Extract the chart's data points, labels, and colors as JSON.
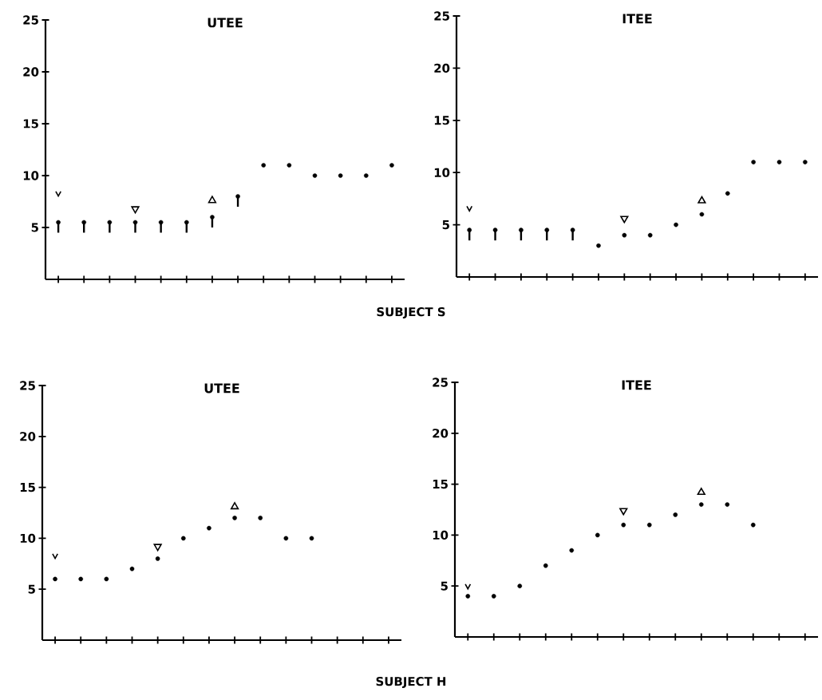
{
  "chart_data": [
    {
      "type": "scatter",
      "title": "UTEE",
      "categories": [
        null,
        null,
        null,
        null,
        null,
        null,
        null,
        null,
        null,
        null,
        null,
        null,
        null,
        null
      ],
      "ylim": [
        0,
        25
      ],
      "yticks": [
        5,
        10,
        15,
        20,
        25
      ],
      "tick_labels": "y",
      "marker": "circle",
      "series": [
        {
          "color": "#000000",
          "values": [
            5.5,
            5.5,
            5.5,
            5.5,
            5.5,
            5.5,
            6,
            8,
            11,
            11,
            10,
            10,
            10,
            11
          ],
          "errors": [
            [
              4.5,
              5.5
            ],
            [
              4.5,
              5.5
            ],
            [
              4.5,
              5.5
            ],
            [
              4.5,
              5.5
            ],
            [
              4.5,
              5.5
            ],
            [
              4.5,
              5.5
            ],
            [
              5,
              6
            ],
            [
              7,
              8
            ],
            null,
            null,
            null,
            null,
            null,
            null
          ]
        },
        {
          "color": "#000000",
          "marker": "cross",
          "values": [
            8.2,
            null,
            null,
            null,
            null,
            null,
            null,
            null,
            null,
            null,
            null,
            null,
            null,
            null
          ]
        },
        {
          "color": "#000000",
          "marker": "triangle",
          "values": [
            null,
            null,
            null,
            6.8,
            null,
            null,
            null,
            null,
            null,
            null,
            null,
            null,
            null,
            null
          ]
        },
        {
          "color": "#000000",
          "marker": "triangle",
          "values": [
            null,
            null,
            null,
            null,
            null,
            null,
            7.6,
            null,
            null,
            null,
            null,
            null,
            null,
            null
          ]
        }
      ],
      "annotations": [
        "SUBJECT S"
      ]
    },
    {
      "type": "scatter",
      "title": "ITEE",
      "categories": [
        null,
        null,
        null,
        null,
        null,
        null,
        null,
        null,
        null,
        null,
        null,
        null,
        null,
        null
      ],
      "ylim": [
        0,
        25
      ],
      "yticks": [
        5,
        10,
        15,
        20,
        25
      ],
      "tick_labels": "y",
      "marker": "circle",
      "series": [
        {
          "color": "#000000",
          "values": [
            4.5,
            4.5,
            4.5,
            4.5,
            4.5,
            3,
            4,
            4,
            5,
            6,
            8,
            11,
            11,
            11
          ],
          "errors": [
            [
              3.5,
              4.5
            ],
            [
              3.5,
              4.5
            ],
            [
              3.5,
              4.5
            ],
            [
              3.5,
              4.5
            ],
            [
              3.5,
              4.5
            ],
            null,
            null,
            null,
            null,
            null,
            null,
            null,
            null,
            null
          ]
        },
        {
          "color": "#000000",
          "marker": "cross",
          "values": [
            6.5,
            null,
            null,
            null,
            null,
            null,
            null,
            null,
            null,
            null,
            null,
            null,
            null,
            null
          ]
        },
        {
          "color": "#000000",
          "marker": "triangle",
          "values": [
            null,
            null,
            null,
            null,
            null,
            null,
            5.6,
            null,
            null,
            null,
            null,
            null,
            null,
            null
          ]
        },
        {
          "color": "#000000",
          "marker": "triangle",
          "values": [
            null,
            null,
            null,
            null,
            null,
            null,
            null,
            null,
            null,
            7.3,
            null,
            null,
            null,
            null
          ]
        }
      ]
    },
    {
      "type": "scatter",
      "title": "UTEE",
      "categories": [
        null,
        null,
        null,
        null,
        null,
        null,
        null,
        null,
        null,
        null,
        null,
        null,
        null,
        null
      ],
      "ylim": [
        0,
        25
      ],
      "yticks": [
        5,
        10,
        15,
        20,
        25
      ],
      "tick_labels": "y",
      "marker": "circle",
      "series": [
        {
          "color": "#000000",
          "values": [
            6,
            6,
            6,
            7,
            8,
            10,
            11,
            12,
            12,
            10,
            10,
            null,
            null,
            null
          ]
        },
        {
          "color": "#000000",
          "marker": "cross",
          "values": [
            8.2,
            null,
            null,
            null,
            null,
            null,
            null,
            null,
            null,
            null,
            null,
            null,
            null,
            null
          ]
        },
        {
          "color": "#000000",
          "marker": "triangle",
          "values": [
            null,
            null,
            null,
            null,
            9.2,
            null,
            null,
            null,
            null,
            null,
            null,
            null,
            null,
            null
          ]
        },
        {
          "color": "#000000",
          "marker": "triangle",
          "values": [
            null,
            null,
            null,
            null,
            null,
            null,
            null,
            13.1,
            null,
            null,
            null,
            null,
            null,
            null
          ]
        }
      ],
      "annotations": [
        "SUBJECT H"
      ]
    },
    {
      "type": "scatter",
      "title": "ITEE",
      "categories": [
        null,
        null,
        null,
        null,
        null,
        null,
        null,
        null,
        null,
        null,
        null,
        null,
        null,
        null
      ],
      "ylim": [
        0,
        25
      ],
      "yticks": [
        5,
        10,
        15,
        20,
        25
      ],
      "tick_labels": "y",
      "marker": "circle",
      "series": [
        {
          "color": "#000000",
          "values": [
            4,
            4,
            5,
            7,
            8.5,
            10,
            11,
            11,
            12,
            13,
            13,
            11,
            null,
            null
          ]
        },
        {
          "color": "#000000",
          "marker": "cross",
          "values": [
            4.9,
            null,
            null,
            null,
            null,
            null,
            null,
            null,
            null,
            null,
            null,
            null,
            null,
            null
          ]
        },
        {
          "color": "#000000",
          "marker": "triangle",
          "values": [
            null,
            null,
            null,
            null,
            null,
            null,
            12.4,
            null,
            null,
            null,
            null,
            null,
            null,
            null
          ]
        },
        {
          "color": "#000000",
          "marker": "triangle",
          "values": [
            null,
            null,
            null,
            null,
            null,
            null,
            null,
            null,
            null,
            14.2,
            null,
            null,
            null,
            null
          ]
        }
      ]
    }
  ]
}
